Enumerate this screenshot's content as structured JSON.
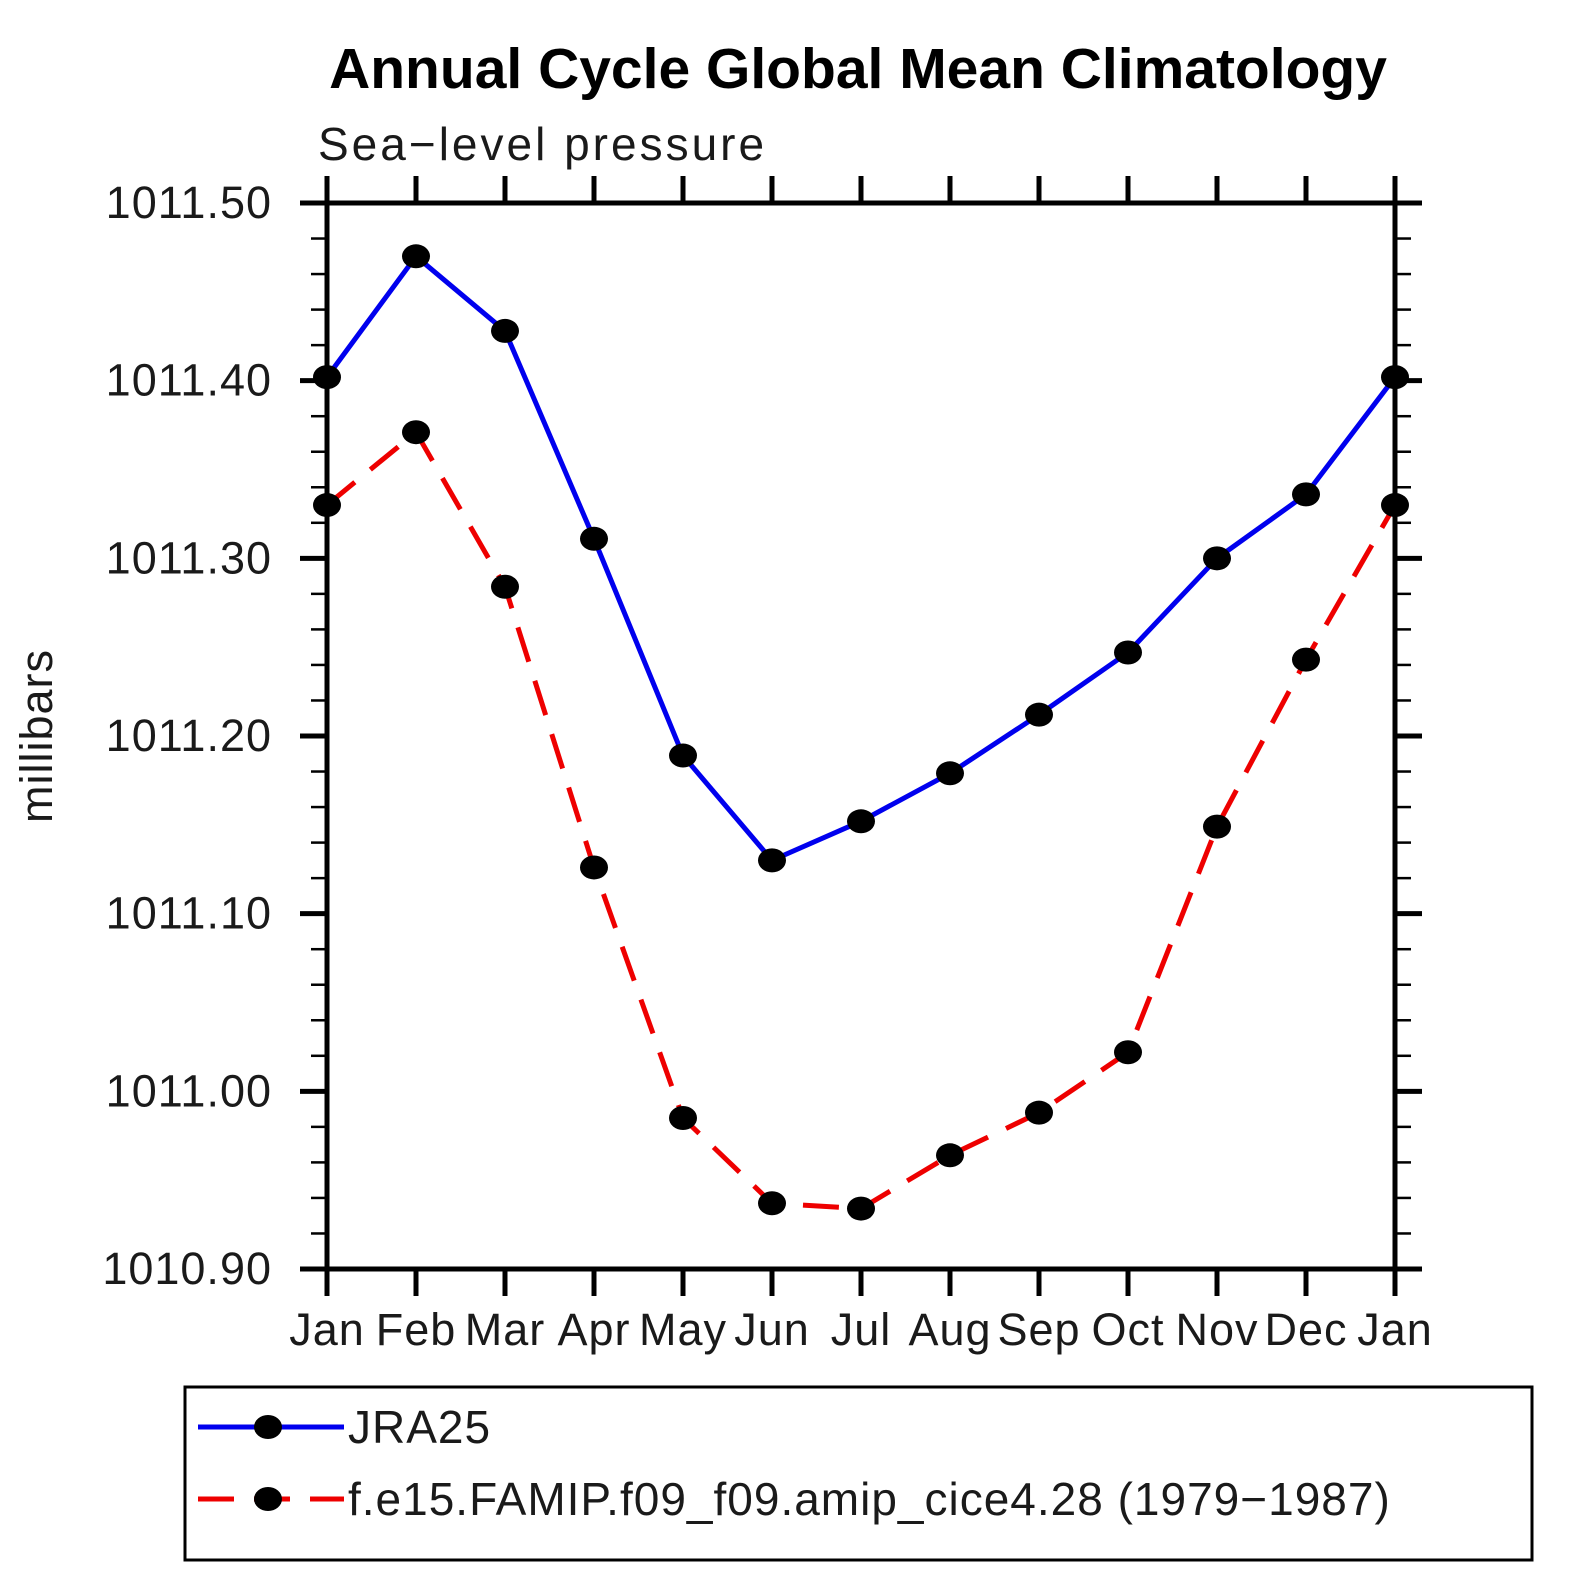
{
  "title": "Annual Cycle Global Mean Climatology",
  "subtitle": "Sea−level pressure",
  "ylabel": "millibars",
  "colors": {
    "series1": "#0000ee",
    "series2": "#ee0000",
    "marker": "#000000",
    "axis": "#000000"
  },
  "legend": {
    "entries": [
      {
        "label": "JRA25",
        "color": "#0000ee",
        "style": "solid"
      },
      {
        "label": "f.e15.FAMIP.f09_f09.amip_cice4.28 (1979−1987)",
        "color": "#ee0000",
        "style": "dashed"
      }
    ]
  },
  "chart_data": {
    "type": "line",
    "title": "Annual Cycle Global Mean Climatology",
    "subtitle": "Sea−level pressure",
    "xlabel": "",
    "ylabel": "millibars",
    "categories": [
      "Jan",
      "Feb",
      "Mar",
      "Apr",
      "May",
      "Jun",
      "Jul",
      "Aug",
      "Sep",
      "Oct",
      "Nov",
      "Dec",
      "Jan"
    ],
    "ylim": [
      1010.9,
      1011.5
    ],
    "ytick_major": [
      1010.9,
      1011.0,
      1011.1,
      1011.2,
      1011.3,
      1011.4,
      1011.5
    ],
    "ytick_labels": [
      "1010.90",
      "1011.00",
      "1011.10",
      "1011.20",
      "1011.30",
      "1011.40",
      "1011.50"
    ],
    "ytick_minor_step": 0.02,
    "grid": false,
    "legend_position": "bottom-left-box",
    "series": [
      {
        "name": "JRA25",
        "color": "#0000ee",
        "style": "solid",
        "marker": "filled-circle",
        "marker_color": "#000000",
        "values": [
          1011.402,
          1011.47,
          1011.428,
          1011.311,
          1011.189,
          1011.13,
          1011.152,
          1011.179,
          1011.212,
          1011.247,
          1011.3,
          1011.336,
          1011.402
        ]
      },
      {
        "name": "f.e15.FAMIP.f09_f09.amip_cice4.28 (1979−1987)",
        "color": "#ee0000",
        "style": "dashed",
        "marker": "filled-circle",
        "marker_color": "#000000",
        "values": [
          1011.33,
          1011.371,
          1011.284,
          1011.126,
          1010.985,
          1010.937,
          1010.934,
          1010.964,
          1010.988,
          1011.022,
          1011.149,
          1011.243,
          1011.33
        ]
      }
    ]
  }
}
